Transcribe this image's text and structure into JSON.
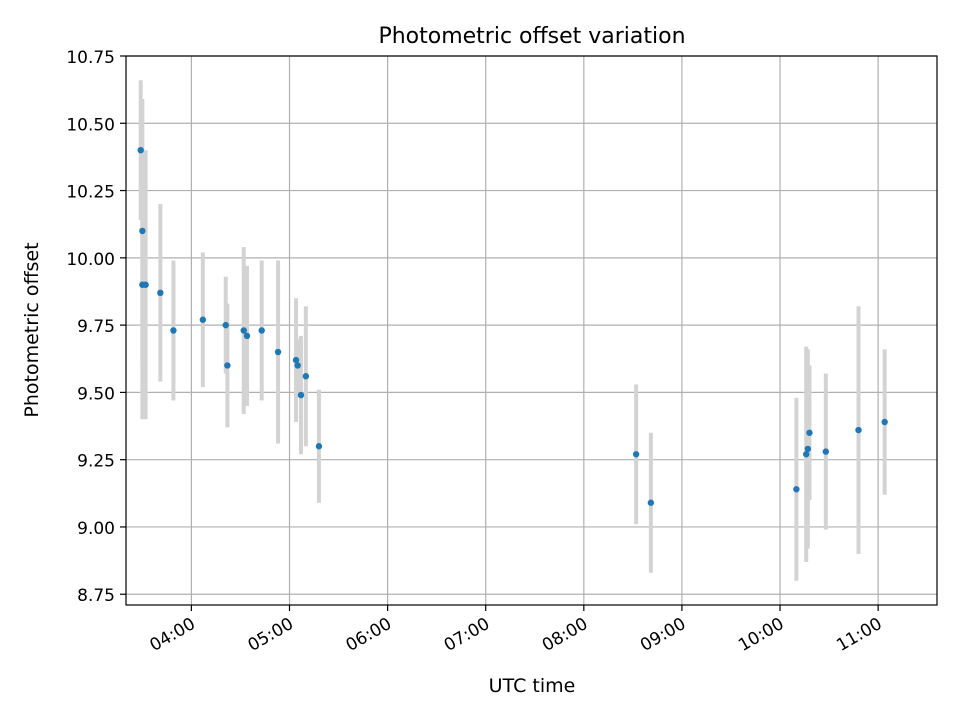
{
  "chart_data": {
    "type": "scatter",
    "title": "Photometric offset variation",
    "xlabel": "UTC time",
    "ylabel": "Photometric offset",
    "xlim": [
      "03:20",
      "11:36"
    ],
    "ylim": [
      8.71,
      10.75
    ],
    "xticks": [
      "04:00",
      "05:00",
      "06:00",
      "07:00",
      "08:00",
      "09:00",
      "10:00",
      "11:00"
    ],
    "yticks": [
      "8.75",
      "9.00",
      "9.25",
      "9.50",
      "9.75",
      "10.00",
      "10.25",
      "10.50",
      "10.75"
    ],
    "grid": true,
    "colors": {
      "point": "#1f77b4",
      "errorbar": "#d3d3d3",
      "grid": "#b0b0b0"
    },
    "series": [
      {
        "x": [
          "03:29",
          "03:30",
          "03:30",
          "03:32",
          "03:41",
          "03:49",
          "04:07",
          "04:21",
          "04:22",
          "04:32",
          "04:34",
          "04:43",
          "04:53",
          "05:04",
          "05:05",
          "05:07",
          "05:10",
          "05:18",
          "08:32",
          "08:41",
          "10:10",
          "10:16",
          "10:17",
          "10:18",
          "10:28",
          "10:48",
          "11:04"
        ],
        "y": [
          10.4,
          10.1,
          9.9,
          9.9,
          9.87,
          9.73,
          9.77,
          9.75,
          9.6,
          9.73,
          9.71,
          9.73,
          9.65,
          9.62,
          9.6,
          9.49,
          9.56,
          9.3,
          9.27,
          9.09,
          9.14,
          9.27,
          9.29,
          9.35,
          9.28,
          9.36,
          9.39
        ],
        "yerr": [
          0.26,
          0.49,
          0.5,
          0.5,
          0.33,
          0.26,
          0.25,
          0.18,
          0.23,
          0.31,
          0.26,
          0.26,
          0.34,
          0.23,
          0.1,
          0.22,
          0.26,
          0.21,
          0.26,
          0.26,
          0.34,
          0.4,
          0.37,
          0.25,
          0.29,
          0.46,
          0.27
        ]
      }
    ]
  }
}
